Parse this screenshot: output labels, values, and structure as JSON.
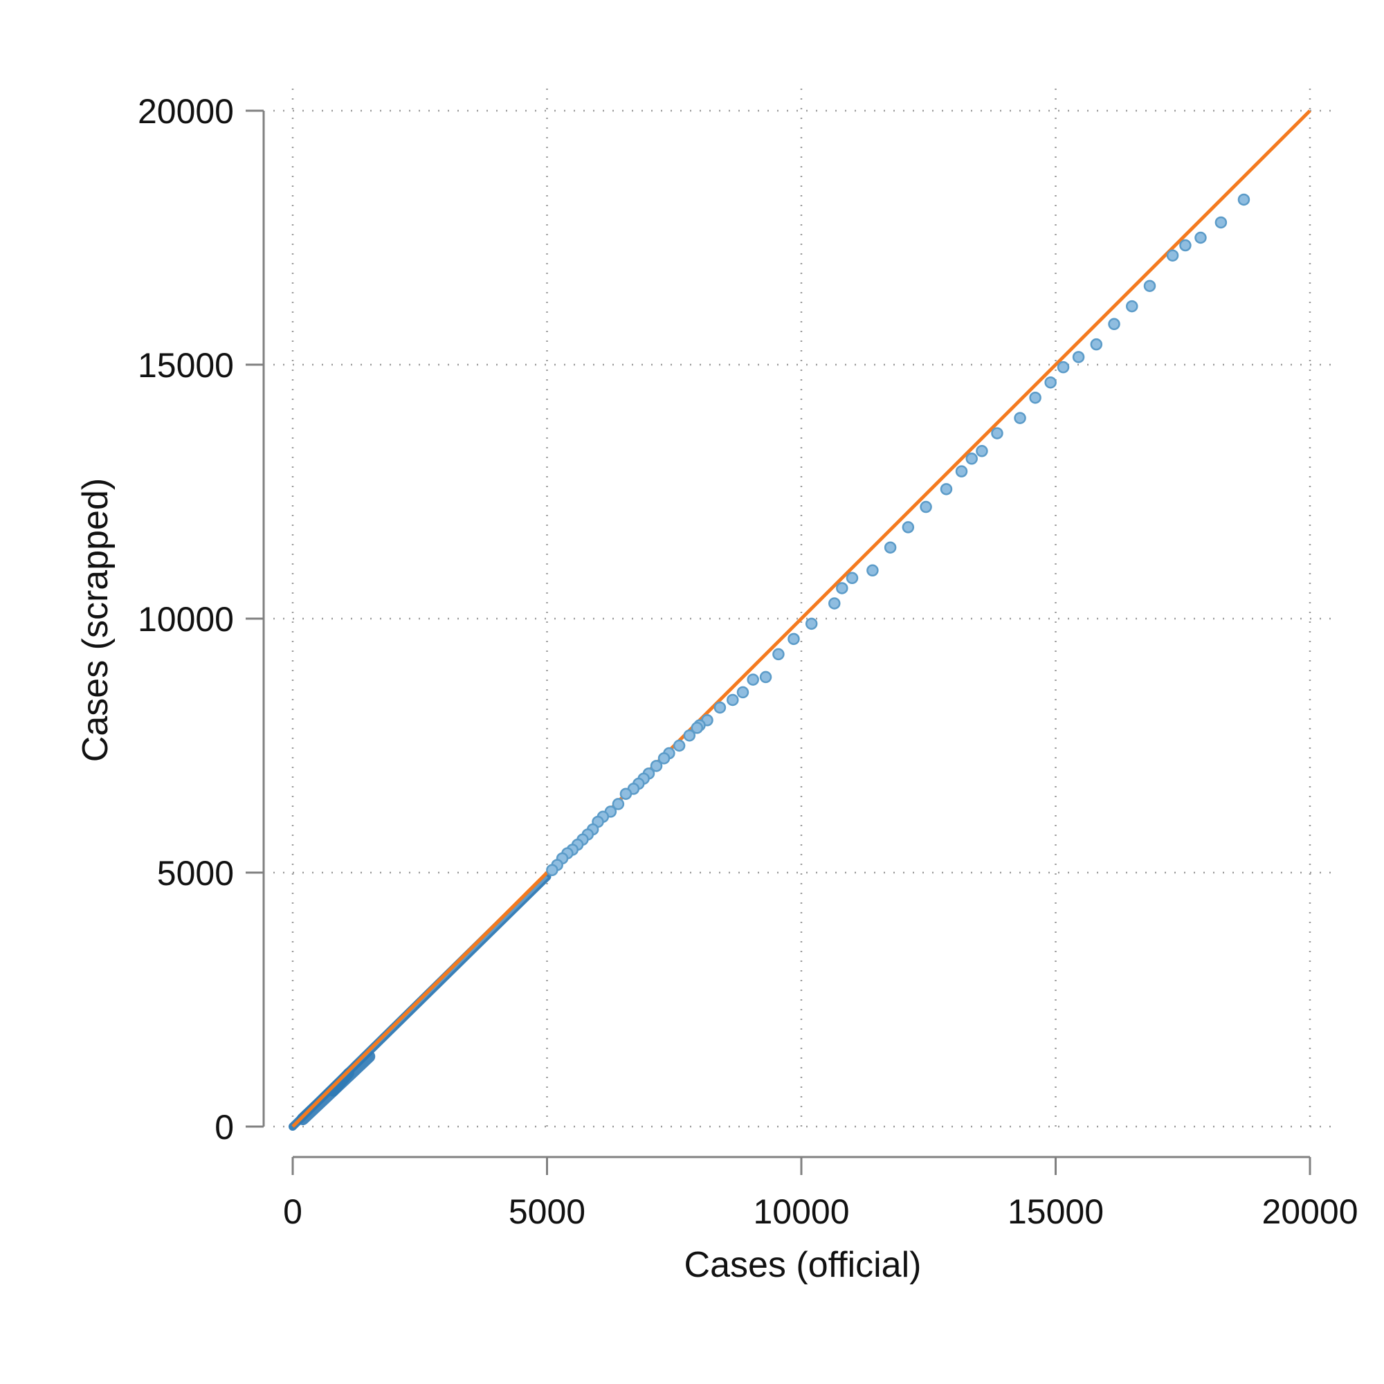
{
  "chart_data": {
    "type": "scatter",
    "xlabel": "Cases (official)",
    "ylabel": "Cases (scrapped)",
    "xlim": [
      0,
      20000
    ],
    "ylim": [
      0,
      20000
    ],
    "xticks": [
      "0",
      "5000",
      "10000",
      "15000",
      "20000"
    ],
    "yticks": [
      "0",
      "5000",
      "10000",
      "15000",
      "20000"
    ],
    "grid": true,
    "colors": {
      "points_fill": "#8fbde0",
      "points_edge": "#5b9bc8",
      "dense_points": "#2f7ab5",
      "reference_line": "#f47a1f",
      "axis": "#808080",
      "grid": "#9a9a9a"
    },
    "reference_line": {
      "x": [
        0,
        20000
      ],
      "y": [
        0,
        20000
      ]
    },
    "points": [
      [
        18700,
        18250
      ],
      [
        18250,
        17800
      ],
      [
        17850,
        17500
      ],
      [
        17550,
        17350
      ],
      [
        17300,
        17150
      ],
      [
        16850,
        16550
      ],
      [
        16500,
        16150
      ],
      [
        16150,
        15800
      ],
      [
        15800,
        15400
      ],
      [
        15450,
        15150
      ],
      [
        15150,
        14950
      ],
      [
        14900,
        14650
      ],
      [
        14600,
        14350
      ],
      [
        14300,
        13950
      ],
      [
        13850,
        13650
      ],
      [
        13550,
        13300
      ],
      [
        13350,
        13150
      ],
      [
        13150,
        12900
      ],
      [
        12850,
        12550
      ],
      [
        12450,
        12200
      ],
      [
        12100,
        11800
      ],
      [
        11750,
        11400
      ],
      [
        11400,
        10950
      ],
      [
        11000,
        10800
      ],
      [
        10800,
        10600
      ],
      [
        10650,
        10300
      ],
      [
        10200,
        9900
      ],
      [
        9850,
        9600
      ],
      [
        9550,
        9300
      ],
      [
        9300,
        8850
      ],
      [
        9050,
        8800
      ],
      [
        8850,
        8550
      ],
      [
        8650,
        8400
      ],
      [
        8400,
        8250
      ],
      [
        8150,
        8000
      ],
      [
        8000,
        7900
      ],
      [
        7950,
        7850
      ],
      [
        7800,
        7700
      ],
      [
        7600,
        7500
      ],
      [
        7400,
        7350
      ],
      [
        7300,
        7250
      ],
      [
        7150,
        7100
      ],
      [
        7000,
        6950
      ],
      [
        6900,
        6850
      ],
      [
        6800,
        6750
      ],
      [
        6700,
        6650
      ],
      [
        6550,
        6550
      ],
      [
        6400,
        6350
      ],
      [
        6250,
        6200
      ],
      [
        6100,
        6100
      ],
      [
        6000,
        6000
      ],
      [
        5900,
        5850
      ],
      [
        5800,
        5750
      ],
      [
        5700,
        5650
      ],
      [
        5600,
        5550
      ],
      [
        5500,
        5450
      ],
      [
        5400,
        5380
      ],
      [
        5300,
        5280
      ],
      [
        5200,
        5150
      ],
      [
        5100,
        5050
      ]
    ]
  }
}
